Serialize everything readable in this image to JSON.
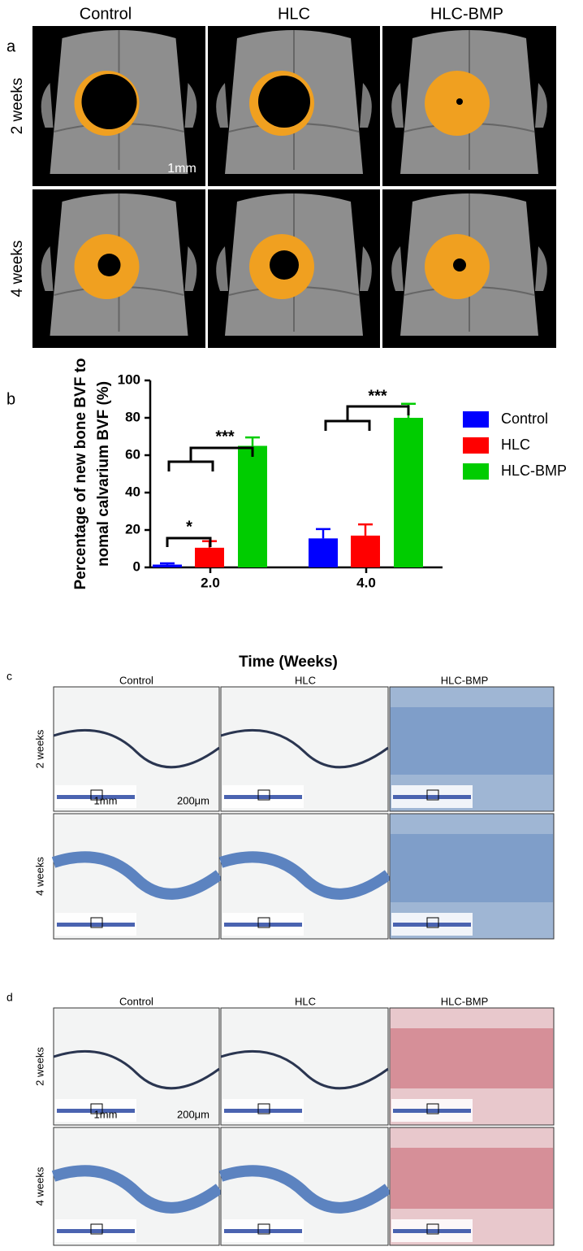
{
  "panel_a": {
    "label": "a",
    "columns": [
      "Control",
      "HLC",
      "HLC-BMP"
    ],
    "rows": [
      "2 weeks",
      "4 weeks"
    ],
    "scale_bar": "1mm"
  },
  "chart_data": {
    "type": "bar",
    "panel_label": "b",
    "categories": [
      "2.0",
      "4.0"
    ],
    "series": [
      {
        "name": "Control",
        "color": "#0000ff",
        "values": [
          1.5,
          15.5
        ],
        "errors": [
          0.7,
          5
        ]
      },
      {
        "name": "HLC",
        "color": "#ff0000",
        "values": [
          10.5,
          17
        ],
        "errors": [
          3.5,
          6
        ]
      },
      {
        "name": "HLC-BMP",
        "color": "#00cc00",
        "values": [
          65,
          80
        ],
        "errors": [
          4.5,
          7.5
        ]
      }
    ],
    "xlabel": "Time (Weeks)",
    "ylabel": [
      "Percentage of new bone BVF to",
      "nomal calvarium BVF (%)"
    ],
    "ylim": [
      0,
      100
    ],
    "yticks": [
      0,
      20,
      40,
      60,
      80,
      100
    ],
    "annotations": [
      "*",
      "***",
      "***"
    ],
    "legend": "right"
  },
  "panel_c": {
    "label": "c",
    "columns": [
      "Control",
      "HLC",
      "HLC-BMP"
    ],
    "rows": [
      "2 weeks",
      "4 weeks"
    ],
    "scale_bars": [
      "1mm",
      "200μm"
    ]
  },
  "panel_d": {
    "label": "d",
    "columns": [
      "Control",
      "HLC",
      "HLC-BMP"
    ],
    "rows": [
      "2 weeks",
      "4 weeks"
    ],
    "scale_bars": [
      "1mm",
      "200μm"
    ]
  }
}
